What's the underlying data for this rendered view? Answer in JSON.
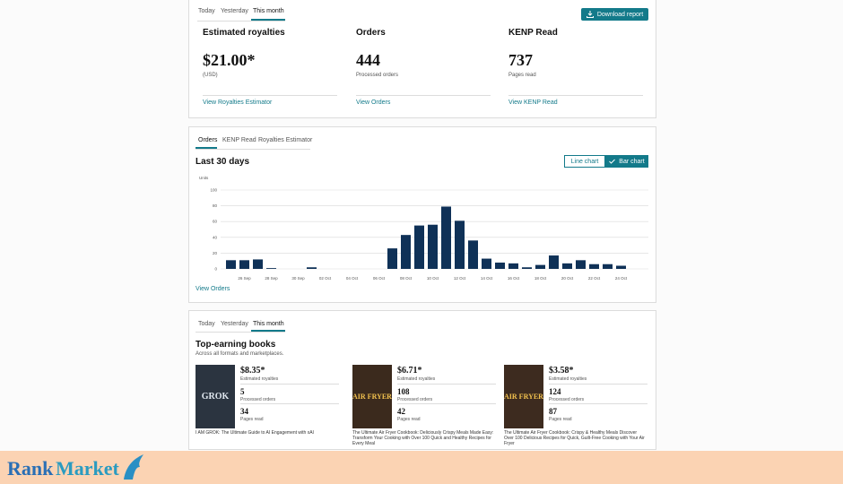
{
  "summary": {
    "tabs": [
      "Today",
      "Yesterday",
      "This month"
    ],
    "download": "Download report",
    "metrics": [
      {
        "title": "Estimated royalties",
        "value": "$21.00*",
        "sub": "(USD)",
        "link": "View Royalties Estimator"
      },
      {
        "title": "Orders",
        "value": "444",
        "sub": "Processed orders",
        "link": "View Orders"
      },
      {
        "title": "KENP Read",
        "value": "737",
        "sub": "Pages read",
        "link": "View KENP Read"
      }
    ]
  },
  "chart_panel": {
    "tabs": [
      "Orders",
      "KENP Read",
      "Royalties Estimator"
    ],
    "heading": "Last 30 days",
    "buttons": [
      "Line chart",
      "Bar chart"
    ],
    "link": "View Orders"
  },
  "chart_data": {
    "type": "bar",
    "ylabel": "Units",
    "categories": [
      null,
      "26 Sep",
      null,
      "28 Sep",
      null,
      "30 Sep",
      null,
      "02 Oct",
      null,
      "04 Oct",
      null,
      "06 Oct",
      null,
      "08 Oct",
      null,
      "10 Oct",
      null,
      "12 Oct",
      null,
      "14 Oct",
      null,
      "16 Oct",
      null,
      "18 Oct",
      null,
      "20 Oct",
      null,
      "22 Oct",
      null,
      "24 Oct",
      null
    ],
    "values": [
      11,
      11,
      12,
      1,
      0,
      0,
      2,
      0,
      0,
      0,
      0,
      0,
      26,
      43,
      55,
      56,
      79,
      61,
      36,
      13,
      8,
      7,
      2,
      5,
      17,
      7,
      11,
      6,
      6,
      4,
      0
    ],
    "color": "#0f3157",
    "ylim": [
      0,
      100
    ],
    "yticks": [
      0,
      20,
      40,
      60,
      80,
      100
    ],
    "grid": true
  },
  "books_panel": {
    "tabs": [
      "Today",
      "Yesterday",
      "This month"
    ],
    "heading": "Top-earning books",
    "subheading": "Across all formats and marketplaces.",
    "labels": [
      "Estimated royalties",
      "Processed orders",
      "Pages read"
    ],
    "books": [
      {
        "cover": "GROK",
        "royalties": "$8.35*",
        "orders": "5",
        "pages": "34",
        "title": "I AM GROK: The Ultimate Guide to AI Engagement with xAI"
      },
      {
        "cover": "AIR FRYER",
        "royalties": "$6.71*",
        "orders": "108",
        "pages": "42",
        "title": "The Ultimate Air Fryer Cookbook: Deliciously Crispy Meals Made Easy: Transform Your Cooking with Over 100 Quick and Healthy Recipes for Every Meal"
      },
      {
        "cover": "AIR FRYER",
        "royalties": "$3.58*",
        "orders": "124",
        "pages": "87",
        "title": "The Ultimate Air Fryer Cookbook: Crispy & Healthy Meals Discover Over 100 Delicious Recipes for Quick, Guilt-Free Cooking with Your Air Fryer"
      }
    ]
  },
  "watermark": {
    "part1": "Rank",
    "part2": "Market"
  }
}
